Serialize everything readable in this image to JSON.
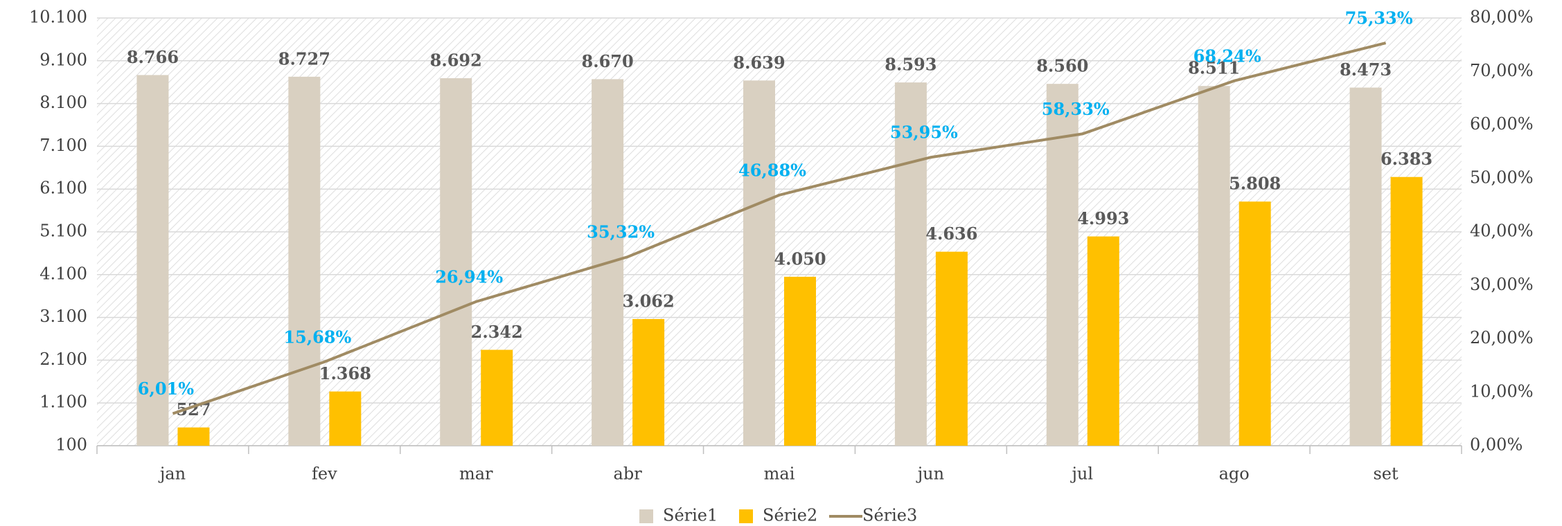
{
  "chart_data": {
    "type": "bar",
    "categories": [
      "jan",
      "fev",
      "mar",
      "abr",
      "mai",
      "jun",
      "jul",
      "ago",
      "set"
    ],
    "series": [
      {
        "name": "Série1",
        "color": "#d9d0c1",
        "values": [
          8766,
          8727,
          8692,
          8670,
          8639,
          8593,
          8560,
          8511,
          8473
        ],
        "value_labels": [
          "8.766",
          "8.727",
          "8.692",
          "8.670",
          "8.639",
          "8.593",
          "8.560",
          "8.511",
          "8.473"
        ]
      },
      {
        "name": "Série2",
        "color": "#ffc000",
        "values": [
          527,
          1368,
          2342,
          3062,
          4050,
          4636,
          4993,
          5808,
          6383
        ],
        "value_labels": [
          "527",
          "1.368",
          "2.342",
          "3.062",
          "4.050",
          "4.636",
          "4.993",
          "5.808",
          "6.383"
        ]
      },
      {
        "name": "Série3",
        "color": "#a08b63",
        "type": "line",
        "axis": "y2",
        "label_color": "#00b0f0",
        "values": [
          6.01,
          15.68,
          26.94,
          35.32,
          46.88,
          53.95,
          58.33,
          68.24,
          75.33
        ],
        "value_labels": [
          "6,01%",
          "15,68%",
          "26,94%",
          "35,32%",
          "46,88%",
          "53,95%",
          "58,33%",
          "68,24%",
          "75,33%"
        ]
      }
    ],
    "ylim": [
      100,
      10100
    ],
    "yticks": [
      100,
      {
        "value": 1100,
        "label": "1.100"
      },
      {
        "value": 2100,
        "label": "2.100"
      },
      {
        "value": 3100,
        "label": "3.100"
      },
      {
        "value": 4100,
        "label": "4.100"
      },
      {
        "value": 5100,
        "label": "5.100"
      },
      {
        "value": 6100,
        "label": "6.100"
      },
      {
        "value": 7100,
        "label": "7.100"
      },
      {
        "value": 8100,
        "label": "8.100"
      },
      {
        "value": 9100,
        "label": "9.100"
      },
      {
        "value": 10100,
        "label": "10.100"
      }
    ],
    "y2lim": [
      0,
      80
    ],
    "y2ticks": [
      {
        "value": 0,
        "label": "0,00%"
      },
      {
        "value": 10,
        "label": "10,00%"
      },
      {
        "value": 20,
        "label": "20,00%"
      },
      {
        "value": 30,
        "label": "30,00%"
      },
      {
        "value": 40,
        "label": "40,00%"
      },
      {
        "value": 50,
        "label": "50,00%"
      },
      {
        "value": 60,
        "label": "60,00%"
      },
      {
        "value": 70,
        "label": "70,00%"
      },
      {
        "value": 80,
        "label": "80,00%"
      }
    ],
    "grid": true,
    "legend": "bottom"
  }
}
